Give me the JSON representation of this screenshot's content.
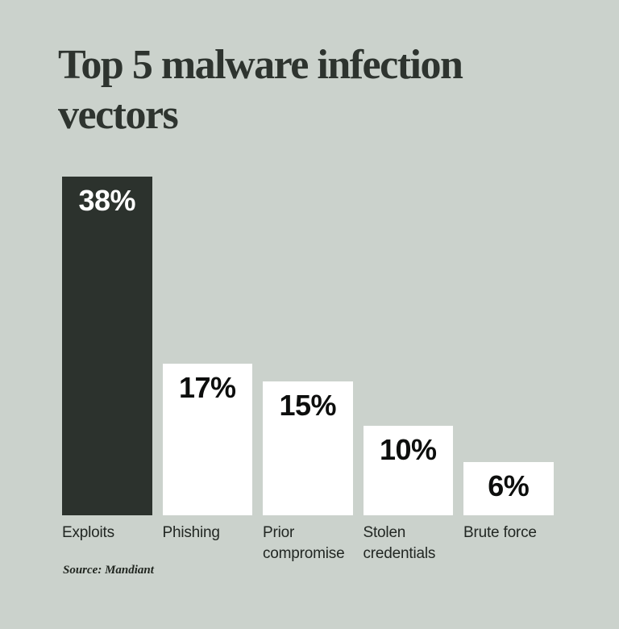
{
  "header": {
    "title_line1": "Top 5 malware infection",
    "title_line2": "vectors"
  },
  "source": "Source: Mandiant",
  "colors": {
    "background": "#cbd2cc",
    "bar_dark": "#2c322d",
    "bar_light": "#ffffff",
    "title_text": "#2e342f",
    "category_text": "#222723",
    "value_on_dark": "#ffffff",
    "value_on_light": "#0d0e0d",
    "source_text": "#20251f"
  },
  "chart_data": {
    "type": "bar",
    "title": "Top 5 malware infection vectors",
    "orientation": "vertical",
    "categories": [
      "Exploits",
      "Phishing",
      "Prior compromise",
      "Stolen credentials",
      "Brute force"
    ],
    "values": [
      38,
      17,
      15,
      10,
      6
    ],
    "value_labels": [
      "38%",
      "17%",
      "15%",
      "10%",
      "6%"
    ],
    "unit": "percent",
    "ylim": [
      0,
      38
    ],
    "bar_highlight_index": 0,
    "grid": false,
    "legend": false,
    "axes_shown": false,
    "source": "Source: Mandiant"
  }
}
